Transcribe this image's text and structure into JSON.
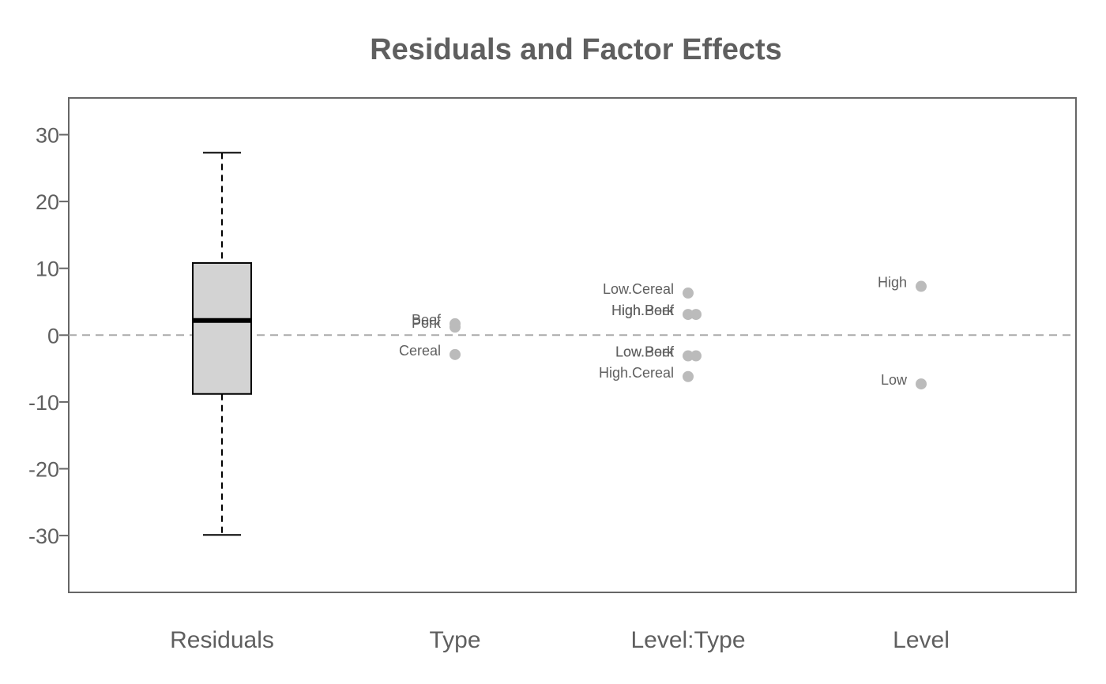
{
  "chart_data": {
    "type": "scatter",
    "title": "Residuals and Factor Effects",
    "xlabel": "",
    "ylabel": "",
    "categories": [
      "Residuals",
      "Type",
      "Level:Type",
      "Level"
    ],
    "ylim": [
      -38.5,
      35.5
    ],
    "yticks": [
      -30,
      -20,
      -10,
      0,
      10,
      20,
      30
    ],
    "grid": false,
    "reference_line": 0,
    "boxplot": {
      "category": "Residuals",
      "min": -29.9,
      "q1": -8.8,
      "median": 2.2,
      "q3": 10.8,
      "max": 27.3,
      "fill": "#d3d3d3"
    },
    "effects": [
      {
        "category": "Type",
        "points": [
          {
            "label": "Beef",
            "value": 1.7
          },
          {
            "label": "Pork",
            "value": 1.2
          },
          {
            "label": "Cereal",
            "value": -2.9
          }
        ]
      },
      {
        "category": "Level:Type",
        "points": [
          {
            "label": "Low.Cereal",
            "value": 6.3
          },
          {
            "label": "High.Beef",
            "value": 3.1
          },
          {
            "label": "High.Pork",
            "value": 3.1
          },
          {
            "label": "Low.Beef",
            "value": -3.1
          },
          {
            "label": "Low.Pork",
            "value": -3.1
          },
          {
            "label": "High.Cereal",
            "value": -6.2
          }
        ]
      },
      {
        "category": "Level",
        "points": [
          {
            "label": "High",
            "value": 7.3
          },
          {
            "label": "Low",
            "value": -7.3
          }
        ]
      }
    ],
    "colors": {
      "text": "#5f5f5f",
      "frame": "#666666",
      "points": "#bbbbbb",
      "refline": "#aaaaaa",
      "box_fill": "#d3d3d3",
      "box_stroke": "#000000"
    }
  }
}
